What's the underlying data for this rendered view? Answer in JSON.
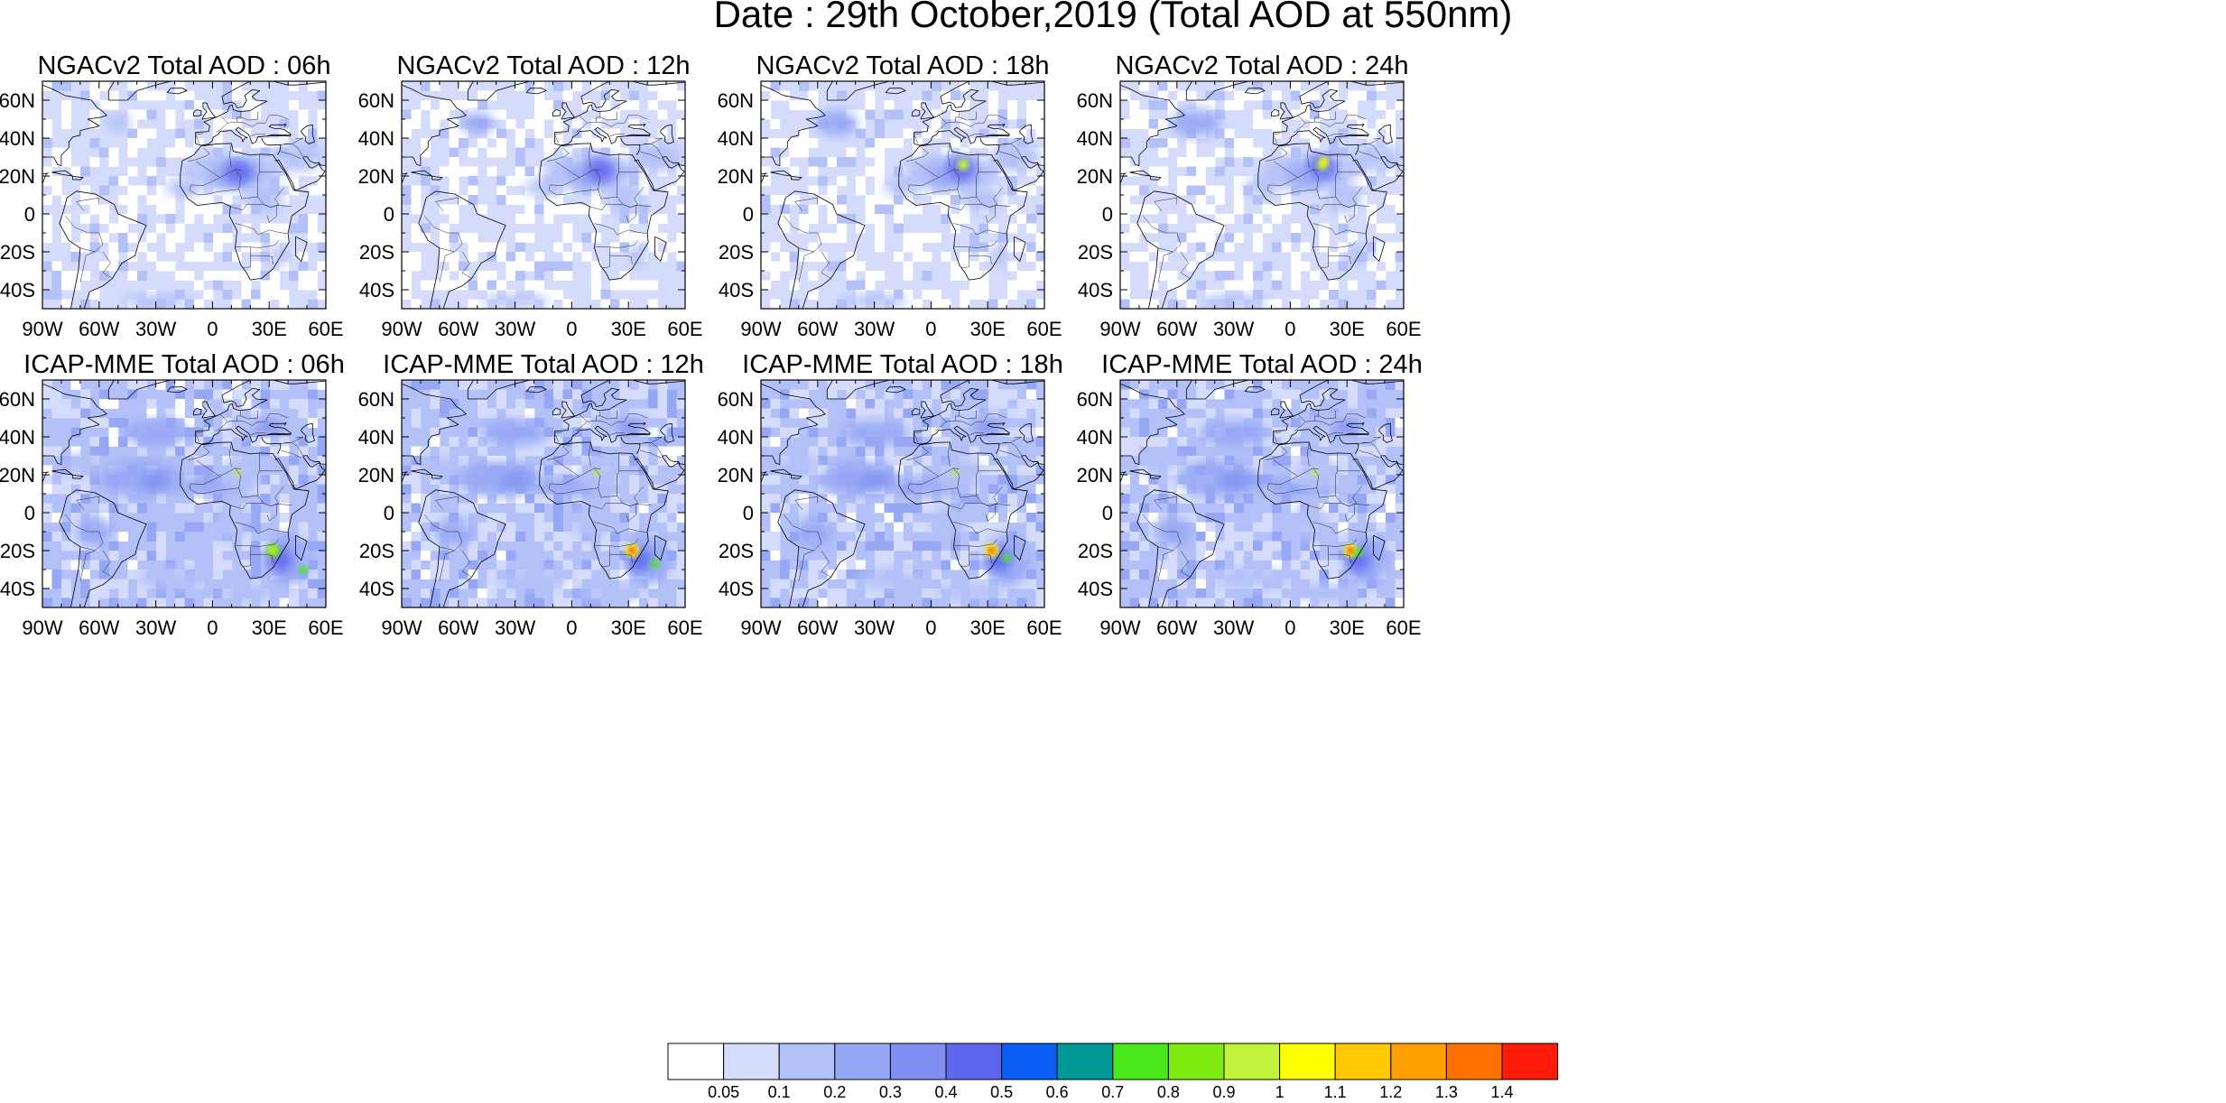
{
  "figure": {
    "title": "Date : 29th October,2019 (Total AOD at 550nm)"
  },
  "axes": {
    "lon_ticks": [
      "90W",
      "60W",
      "30W",
      "0",
      "30E",
      "60E"
    ],
    "lat_ticks": [
      "60N",
      "40N",
      "20N",
      "0",
      "20S",
      "40S"
    ]
  },
  "panels": [
    {
      "title": "NGACv2 Total AOD : 06h",
      "model": "NGACv2",
      "hour": "06h"
    },
    {
      "title": "NGACv2 Total AOD : 12h",
      "model": "NGACv2",
      "hour": "12h"
    },
    {
      "title": "NGACv2 Total AOD : 18h",
      "model": "NGACv2",
      "hour": "18h"
    },
    {
      "title": "NGACv2 Total AOD : 24h",
      "model": "NGACv2",
      "hour": "24h"
    },
    {
      "title": "ICAP-MME Total AOD : 06h",
      "model": "ICAP-MME",
      "hour": "06h"
    },
    {
      "title": "ICAP-MME Total AOD : 12h",
      "model": "ICAP-MME",
      "hour": "12h"
    },
    {
      "title": "ICAP-MME Total AOD : 18h",
      "model": "ICAP-MME",
      "hour": "18h"
    },
    {
      "title": "ICAP-MME Total AOD : 24h",
      "model": "ICAP-MME",
      "hour": "24h"
    }
  ],
  "colorbar": {
    "labels": [
      "0.05",
      "0.1",
      "0.2",
      "0.3",
      "0.4",
      "0.5",
      "0.6",
      "0.7",
      "0.8",
      "0.9",
      "1",
      "1.1",
      "1.2",
      "1.3",
      "1.4"
    ],
    "colors": [
      "#ffffff",
      "#d5dcfb",
      "#b4c1f8",
      "#96a8f5",
      "#7f8ff2",
      "#5f66ee",
      "#0a5ef5",
      "#009a96",
      "#49e81a",
      "#7fea10",
      "#c4f23a",
      "#ffff00",
      "#ffc800",
      "#ff9f00",
      "#ff7000",
      "#ff1a0a"
    ]
  }
}
